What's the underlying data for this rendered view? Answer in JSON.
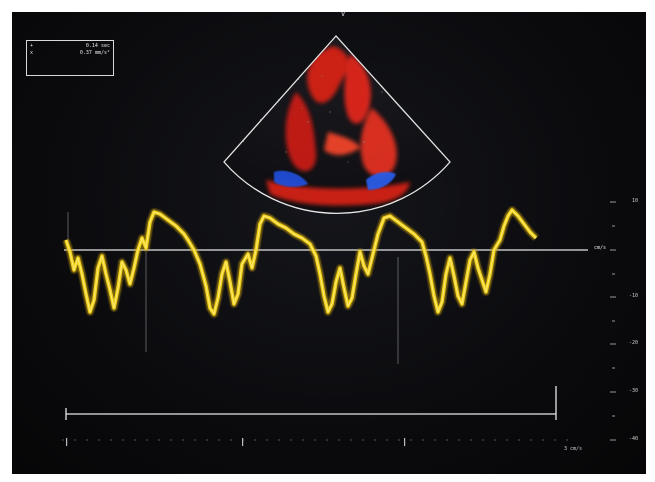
{
  "measurements": {
    "row1": {
      "symbol": "+",
      "value": "0.14 sec"
    },
    "row2": {
      "symbol": "x",
      "value": "0.37 mm/s²"
    }
  },
  "velocity_scale": {
    "labels": [
      "10",
      "cm/s",
      "-10",
      "-20",
      "-30",
      "-40"
    ],
    "baseline_label": "cm/s"
  },
  "sector": {
    "apex_label": "V"
  },
  "time_axis": {
    "label": "3 cm/s"
  },
  "colors": {
    "background": "#0b0b0e",
    "doppler_trace": "#f2d21b",
    "color_flow_red": "#e0281e",
    "color_flow_blue": "#2350d8",
    "overlay_lines": "#e6e6e6"
  }
}
